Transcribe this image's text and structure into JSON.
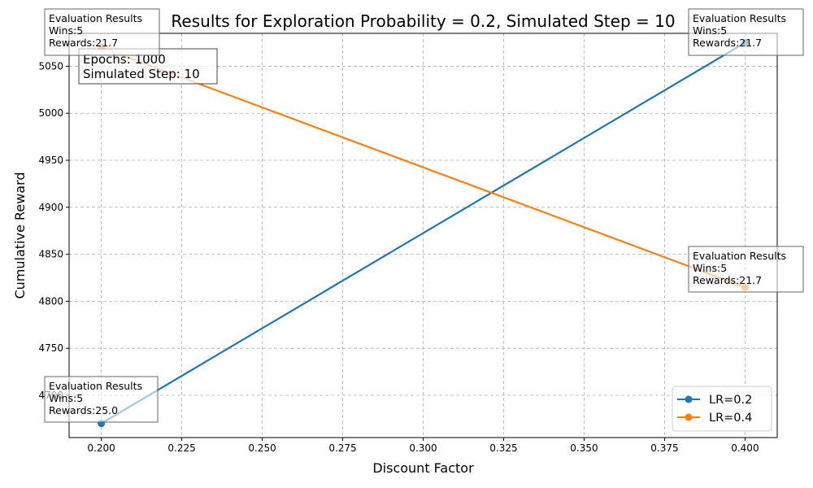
{
  "chart_data": {
    "type": "line",
    "title": "Results for Exploration Probability = 0.2, Simulated Step = 10",
    "xlabel": "Discount Factor",
    "ylabel": "Cumulative Reward",
    "xlim": [
      0.19,
      0.41
    ],
    "ylim": [
      4655,
      5085
    ],
    "xticks": [
      0.2,
      0.225,
      0.25,
      0.275,
      0.3,
      0.325,
      0.35,
      0.375,
      0.4
    ],
    "xtick_labels": [
      "0.200",
      "0.225",
      "0.250",
      "0.275",
      "0.300",
      "0.325",
      "0.350",
      "0.375",
      "0.400"
    ],
    "yticks": [
      4700,
      4750,
      4800,
      4850,
      4900,
      4950,
      5000,
      5050
    ],
    "ytick_labels": [
      "4700",
      "4750",
      "4800",
      "4850",
      "4900",
      "4950",
      "5000",
      "5050"
    ],
    "grid": true,
    "legend_position": "lower-right",
    "series": [
      {
        "name": "LR=0.2",
        "color": "#1f77b4",
        "x": [
          0.2,
          0.4
        ],
        "y": [
          4670,
          5075
        ]
      },
      {
        "name": "LR=0.4",
        "color": "#ff7f0e",
        "x": [
          0.2,
          0.4
        ],
        "y": [
          5070,
          4815
        ]
      }
    ],
    "info_box": {
      "lines": [
        "Epochs: 1000",
        "Simulated Step: 10"
      ]
    },
    "annotations": [
      {
        "lines": [
          "Evaluation Results",
          "Wins:5",
          "Rewards:21.7"
        ]
      },
      {
        "lines": [
          "Evaluation Results",
          "Wins:5",
          "Rewards:21.7"
        ]
      },
      {
        "lines": [
          "Evaluation Results",
          "Wins:5",
          "Rewards:21.7"
        ]
      },
      {
        "lines": [
          "Evaluation Results",
          "Wins:5",
          "Rewards:25.0"
        ]
      }
    ]
  }
}
